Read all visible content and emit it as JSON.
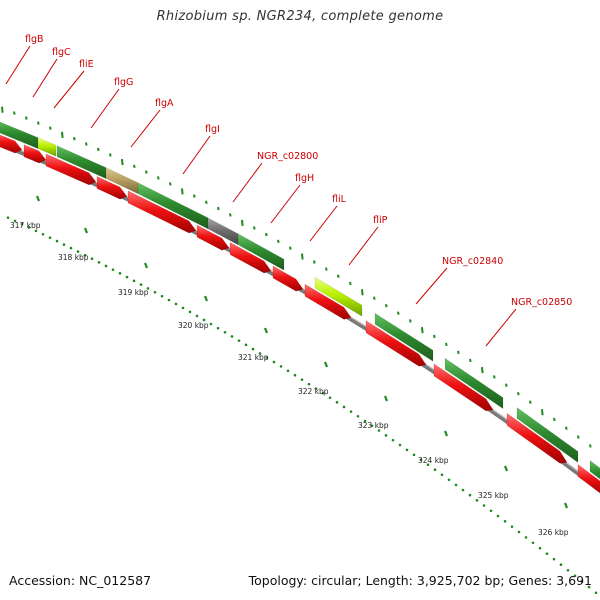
{
  "title": "Rhizobium sp. NGR234, complete genome",
  "footer": {
    "accession": "Accession: NC_012587",
    "summary": "Topology: circular; Length: 3,925,702 bp; Genes: 3,691"
  },
  "colors": {
    "gene_label": "#cc0000",
    "cds_red": "#ee1111",
    "feature_green": "#2e8b2e",
    "feature_lightgreen": "#b7f000",
    "feature_khaki": "#b8a060",
    "feature_gray": "#707070",
    "backbone": "#808080",
    "tick_green": "#1e8a1e"
  },
  "gene_labels": [
    "flgB",
    "flgC",
    "fliE",
    "flgG",
    "flgA",
    "flgI",
    "NGR_c02800",
    "flgH",
    "fliL",
    "fliP",
    "NGR_c02840",
    "NGR_c02850"
  ],
  "kbp_labels": [
    "317 kbp",
    "318 kbp",
    "319 kbp",
    "320 kbp",
    "321 kbp",
    "322 kbp",
    "323 kbp",
    "324 kbp",
    "325 kbp",
    "326 kbp"
  ]
}
